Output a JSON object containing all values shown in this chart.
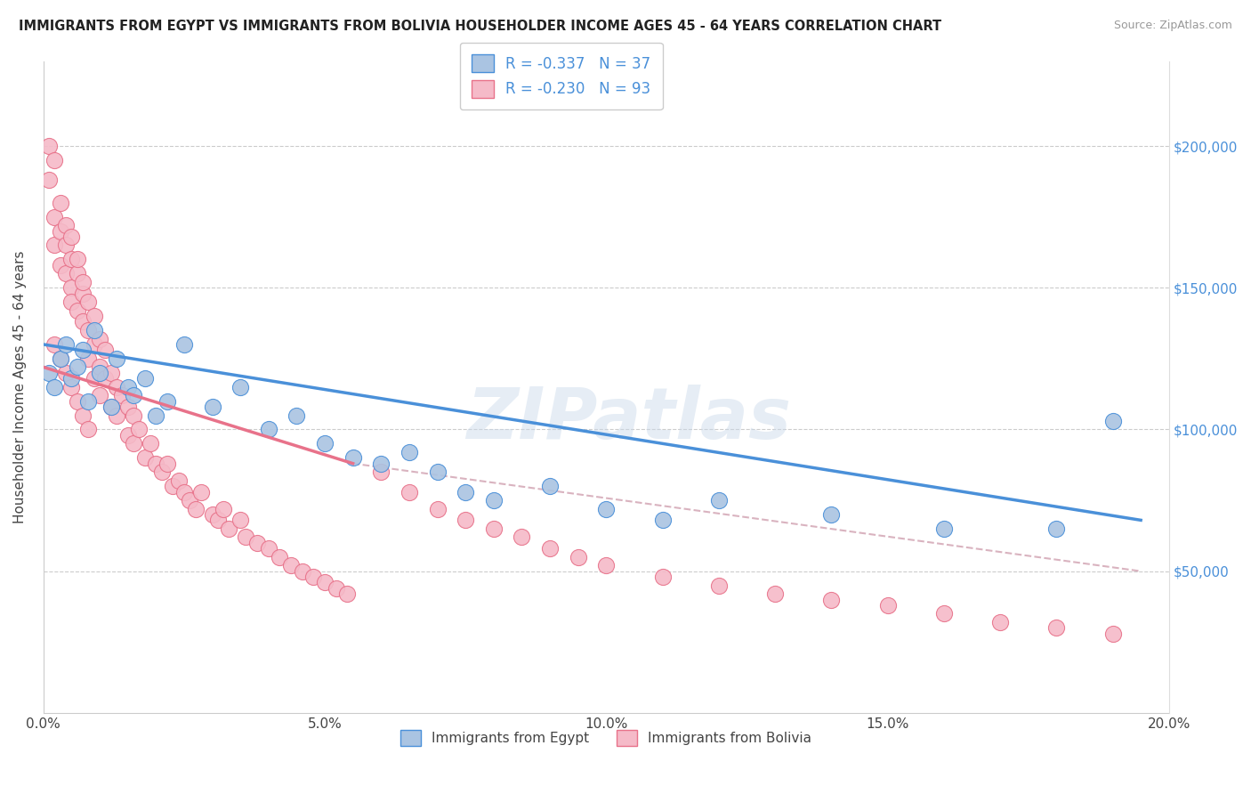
{
  "title": "IMMIGRANTS FROM EGYPT VS IMMIGRANTS FROM BOLIVIA HOUSEHOLDER INCOME AGES 45 - 64 YEARS CORRELATION CHART",
  "source": "Source: ZipAtlas.com",
  "ylabel": "Householder Income Ages 45 - 64 years",
  "xlim": [
    0.0,
    0.2
  ],
  "ylim": [
    0,
    230000
  ],
  "xtick_labels": [
    "0.0%",
    "5.0%",
    "10.0%",
    "15.0%",
    "20.0%"
  ],
  "xtick_vals": [
    0.0,
    0.05,
    0.1,
    0.15,
    0.2
  ],
  "ytick_vals": [
    50000,
    100000,
    150000,
    200000
  ],
  "ytick_labels": [
    "$50,000",
    "$100,000",
    "$150,000",
    "$200,000"
  ],
  "legend_egypt": "R = -0.337   N = 37",
  "legend_bolivia": "R = -0.230   N = 93",
  "legend_label_egypt": "Immigrants from Egypt",
  "legend_label_bolivia": "Immigrants from Bolivia",
  "color_egypt": "#aac4e2",
  "color_bolivia": "#f5bac8",
  "color_line_egypt": "#4a90d9",
  "color_line_bolivia": "#e8728a",
  "color_dashed": "#d0a0b0",
  "watermark": "ZIPatlas",
  "egypt_line_x": [
    0.0,
    0.195
  ],
  "egypt_line_y": [
    130000,
    68000
  ],
  "bolivia_line_x": [
    0.0,
    0.055
  ],
  "bolivia_line_y": [
    122000,
    88000
  ],
  "dashed_line_x": [
    0.055,
    0.195
  ],
  "dashed_line_y": [
    88000,
    50000
  ],
  "egypt_x": [
    0.001,
    0.002,
    0.003,
    0.004,
    0.005,
    0.006,
    0.007,
    0.008,
    0.009,
    0.01,
    0.012,
    0.013,
    0.015,
    0.016,
    0.018,
    0.02,
    0.022,
    0.025,
    0.03,
    0.035,
    0.04,
    0.045,
    0.05,
    0.055,
    0.06,
    0.065,
    0.07,
    0.075,
    0.08,
    0.09,
    0.1,
    0.11,
    0.12,
    0.14,
    0.16,
    0.18,
    0.19
  ],
  "egypt_y": [
    120000,
    115000,
    125000,
    130000,
    118000,
    122000,
    128000,
    110000,
    135000,
    120000,
    108000,
    125000,
    115000,
    112000,
    118000,
    105000,
    110000,
    130000,
    108000,
    115000,
    100000,
    105000,
    95000,
    90000,
    88000,
    92000,
    85000,
    78000,
    75000,
    80000,
    72000,
    68000,
    75000,
    70000,
    65000,
    65000,
    103000
  ],
  "bolivia_x": [
    0.001,
    0.001,
    0.002,
    0.002,
    0.002,
    0.003,
    0.003,
    0.003,
    0.004,
    0.004,
    0.004,
    0.005,
    0.005,
    0.005,
    0.005,
    0.006,
    0.006,
    0.006,
    0.007,
    0.007,
    0.007,
    0.008,
    0.008,
    0.008,
    0.009,
    0.009,
    0.009,
    0.01,
    0.01,
    0.01,
    0.011,
    0.011,
    0.012,
    0.012,
    0.013,
    0.013,
    0.014,
    0.015,
    0.015,
    0.016,
    0.016,
    0.017,
    0.018,
    0.019,
    0.02,
    0.021,
    0.022,
    0.023,
    0.024,
    0.025,
    0.026,
    0.027,
    0.028,
    0.03,
    0.031,
    0.032,
    0.033,
    0.035,
    0.036,
    0.038,
    0.04,
    0.042,
    0.044,
    0.046,
    0.048,
    0.05,
    0.052,
    0.054,
    0.06,
    0.065,
    0.07,
    0.075,
    0.08,
    0.085,
    0.09,
    0.095,
    0.1,
    0.11,
    0.12,
    0.13,
    0.14,
    0.15,
    0.16,
    0.17,
    0.18,
    0.19,
    0.002,
    0.003,
    0.004,
    0.005,
    0.006,
    0.007,
    0.008
  ],
  "bolivia_y": [
    200000,
    188000,
    195000,
    175000,
    165000,
    170000,
    158000,
    180000,
    165000,
    155000,
    172000,
    160000,
    150000,
    168000,
    145000,
    155000,
    142000,
    160000,
    148000,
    138000,
    152000,
    145000,
    135000,
    125000,
    140000,
    130000,
    118000,
    132000,
    122000,
    112000,
    128000,
    118000,
    120000,
    108000,
    115000,
    105000,
    112000,
    108000,
    98000,
    105000,
    95000,
    100000,
    90000,
    95000,
    88000,
    85000,
    88000,
    80000,
    82000,
    78000,
    75000,
    72000,
    78000,
    70000,
    68000,
    72000,
    65000,
    68000,
    62000,
    60000,
    58000,
    55000,
    52000,
    50000,
    48000,
    46000,
    44000,
    42000,
    85000,
    78000,
    72000,
    68000,
    65000,
    62000,
    58000,
    55000,
    52000,
    48000,
    45000,
    42000,
    40000,
    38000,
    35000,
    32000,
    30000,
    28000,
    130000,
    125000,
    120000,
    115000,
    110000,
    105000,
    100000
  ]
}
